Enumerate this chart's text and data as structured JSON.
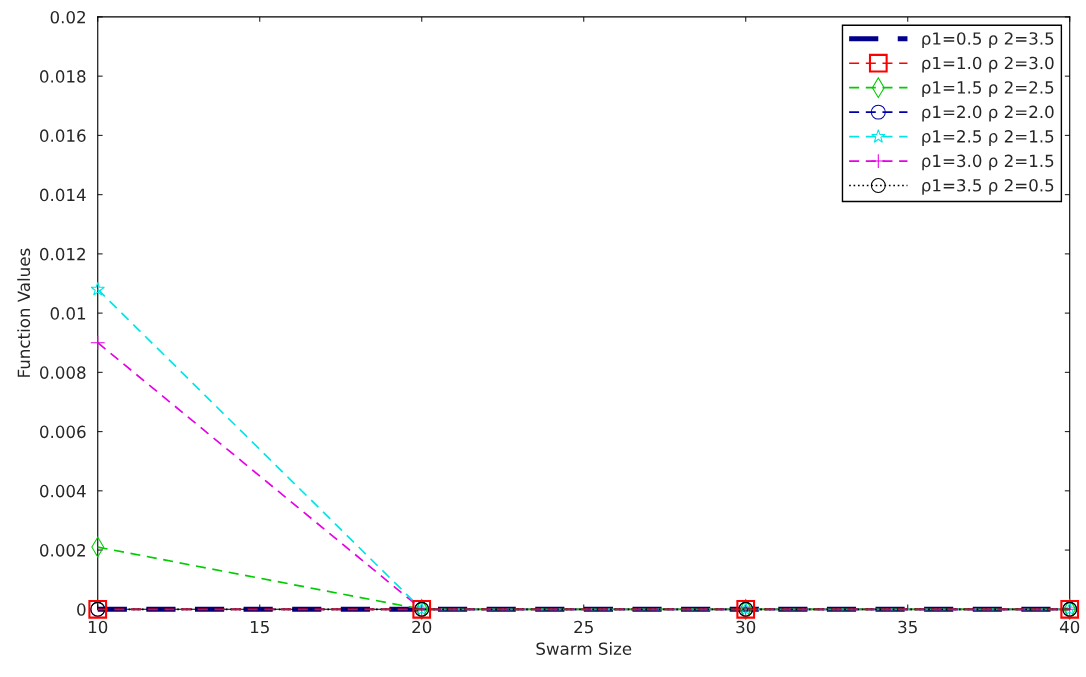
{
  "chart_data": {
    "type": "line",
    "xlabel": "Swarm Size",
    "ylabel": "Function Values",
    "x": [
      10,
      20,
      30,
      40
    ],
    "series": [
      {
        "name": "ρ1=0.5 ρ 2=3.5",
        "color": "#00008b",
        "marker": "none",
        "line_style": "dashed",
        "values": [
          0,
          0,
          0,
          0
        ]
      },
      {
        "name": "ρ1=1.0 ρ 2=3.0",
        "color": "#ff0000",
        "marker": "square",
        "line_style": "dashed",
        "values": [
          0,
          0,
          0,
          0
        ]
      },
      {
        "name": "ρ1=1.5 ρ 2=2.5",
        "color": "#00cc00",
        "marker": "diamond",
        "line_style": "dashed",
        "values": [
          0.0021,
          0,
          0,
          0
        ]
      },
      {
        "name": "ρ1=2.0 ρ 2=2.0",
        "color": "#0000aa",
        "marker": "circle",
        "line_style": "dashed",
        "values": [
          0,
          0,
          0,
          0
        ]
      },
      {
        "name": "ρ1=2.5 ρ 2=1.5",
        "color": "#00e5e5",
        "marker": "star",
        "line_style": "dashed",
        "values": [
          0.0108,
          0,
          0,
          0
        ]
      },
      {
        "name": "ρ1=3.0 ρ 2=1.5",
        "color": "#e500e5",
        "marker": "cross",
        "line_style": "dashed",
        "values": [
          0.009,
          0,
          0,
          0
        ]
      },
      {
        "name": "ρ1=3.5 ρ 2=0.5",
        "color": "#000000",
        "marker": "circle",
        "line_style": "dotted",
        "values": [
          0,
          0,
          0,
          0
        ]
      }
    ],
    "xlim": [
      10,
      40
    ],
    "xticks": [
      10,
      15,
      20,
      25,
      30,
      35,
      40
    ],
    "ylim": [
      0,
      0.02
    ],
    "yticks": [
      0,
      0.002,
      0.004,
      0.006,
      0.008,
      0.01,
      0.012,
      0.014,
      0.016,
      0.018,
      0.02
    ],
    "grid": false,
    "legend": "top right"
  }
}
